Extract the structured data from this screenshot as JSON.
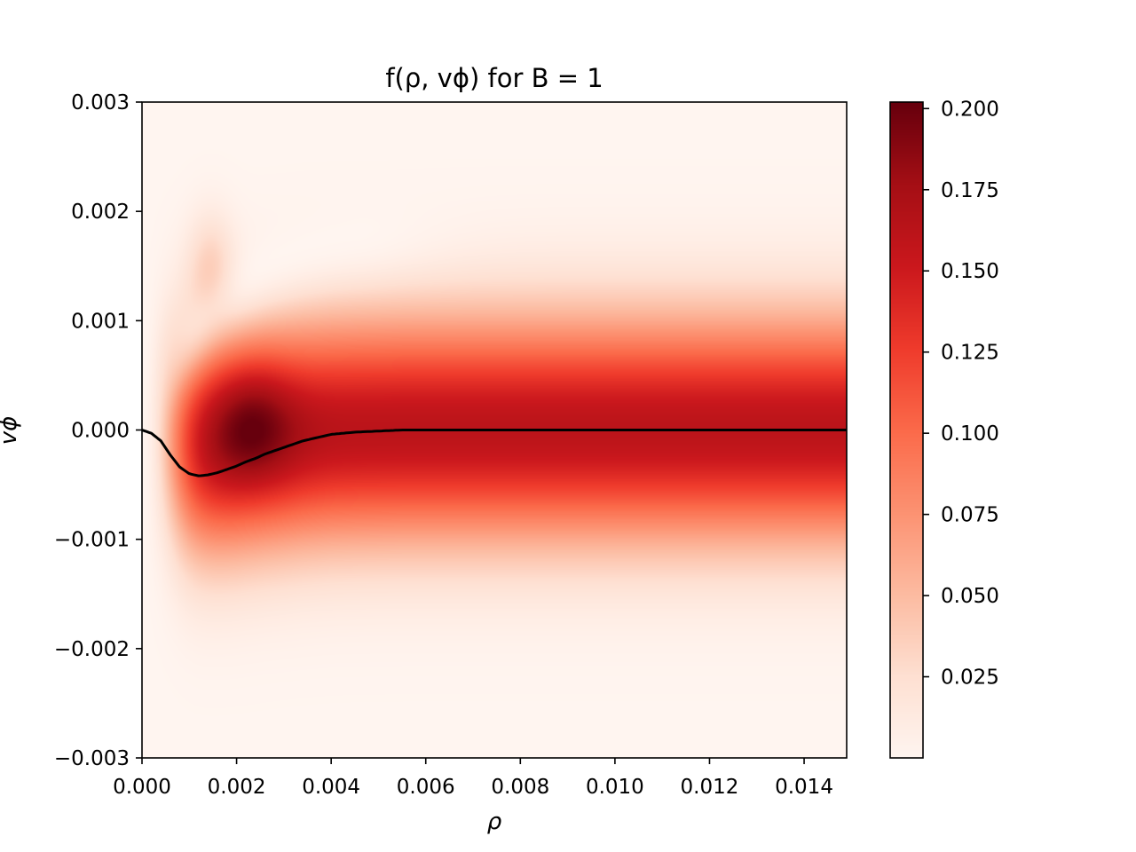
{
  "chart_data": {
    "type": "heatmap",
    "title": "f(ρ, vϕ) for B = 1",
    "xlabel": "ρ",
    "ylabel": "vϕ",
    "xlim": [
      0.0,
      0.0149
    ],
    "ylim": [
      -0.003,
      0.003
    ],
    "xticks": [
      "0.000",
      "0.002",
      "0.004",
      "0.006",
      "0.008",
      "0.010",
      "0.012",
      "0.014"
    ],
    "xtick_values": [
      0.0,
      0.002,
      0.004,
      0.006,
      0.008,
      0.01,
      0.012,
      0.014
    ],
    "yticks": [
      "−0.003",
      "−0.002",
      "−0.001",
      "0.000",
      "0.001",
      "0.002",
      "0.003"
    ],
    "ytick_values": [
      -0.003,
      -0.002,
      -0.001,
      0.0,
      0.001,
      0.002,
      0.003
    ],
    "colormap": "Reds",
    "colorbar": {
      "range": [
        0.0,
        0.202
      ],
      "ticks": [
        "0.025",
        "0.050",
        "0.075",
        "0.100",
        "0.125",
        "0.150",
        "0.175",
        "0.200"
      ],
      "tick_values": [
        0.025,
        0.05,
        0.075,
        0.1,
        0.125,
        0.15,
        0.175,
        0.2
      ]
    },
    "field_description": {
      "band_peak_value": 0.162,
      "band_sigma_v": 0.00072,
      "max_value": 0.202,
      "max_location": {
        "rho": 0.0023,
        "v": 0.0001
      }
    },
    "mean_curve": {
      "color": "#000000",
      "rho": [
        0.0,
        0.0002,
        0.0004,
        0.0006,
        0.0008,
        0.001,
        0.0012,
        0.0014,
        0.0016,
        0.0018,
        0.002,
        0.0022,
        0.0024,
        0.0026,
        0.0028,
        0.003,
        0.0032,
        0.0034,
        0.0036,
        0.0038,
        0.004,
        0.0045,
        0.005,
        0.0055,
        0.006,
        0.007,
        0.008,
        0.01,
        0.012,
        0.0149
      ],
      "v": [
        0.0,
        -3e-05,
        -0.0001,
        -0.00023,
        -0.00034,
        -0.0004,
        -0.00042,
        -0.00041,
        -0.00039,
        -0.00036,
        -0.00033,
        -0.00029,
        -0.00026,
        -0.00022,
        -0.00019,
        -0.00016,
        -0.00013,
        -0.0001,
        -8e-05,
        -6e-05,
        -4e-05,
        -2e-05,
        -1e-05,
        0.0,
        0.0,
        0.0,
        0.0,
        0.0,
        0.0,
        0.0
      ]
    }
  }
}
